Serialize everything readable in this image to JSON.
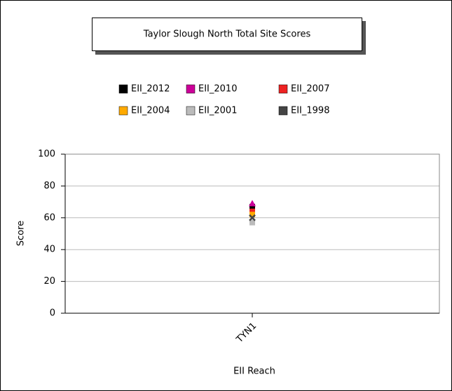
{
  "chart_data": {
    "type": "line",
    "title": "Taylor Slough North Total Site Scores",
    "x_label": "EII Reach",
    "y_label": "Score",
    "categories": [
      "TYN1"
    ],
    "series": [
      {
        "name": "EII_2012",
        "color": "#000000",
        "marker": "square",
        "values": [
          67
        ]
      },
      {
        "name": "EII_2010",
        "color": "#cc0099",
        "marker": "triangle",
        "values": [
          69
        ]
      },
      {
        "name": "EII_2007",
        "color": "#ee2222",
        "marker": "square",
        "values": [
          64
        ]
      },
      {
        "name": "EII_2004",
        "color": "#ffaa00",
        "marker": "square",
        "values": [
          62
        ]
      },
      {
        "name": "EII_2001",
        "color": "#bbbbbb",
        "marker": "square",
        "values": [
          57
        ]
      },
      {
        "name": "EII_1998",
        "color": "#444444",
        "marker": "x",
        "values": [
          60
        ]
      }
    ],
    "ylim": [
      0,
      100
    ],
    "yticks": [
      0,
      20,
      40,
      60,
      80,
      100
    ],
    "grid": true
  }
}
